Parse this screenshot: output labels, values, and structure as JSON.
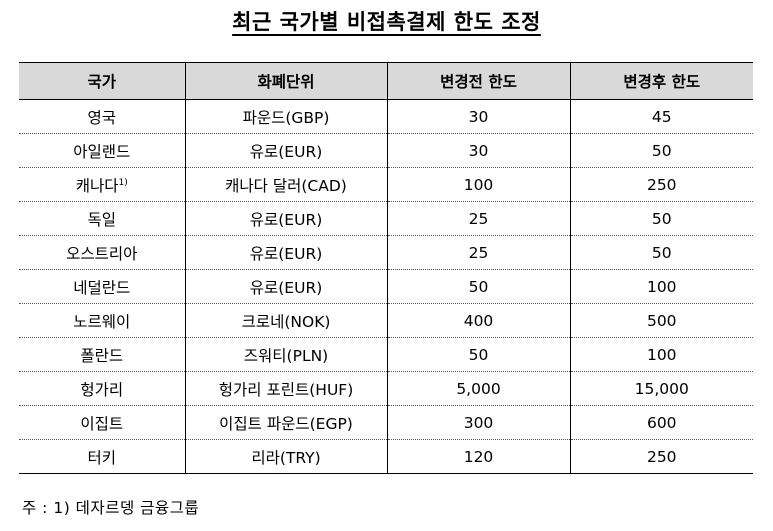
{
  "title": "최근 국가별 비접촉결제 한도 조정",
  "table": {
    "headers": [
      "국가",
      "화폐단위",
      "변경전 한도",
      "변경후 한도"
    ],
    "rows": [
      {
        "country": "영국",
        "currency": "파운드(GBP)",
        "before": "30",
        "after": "45"
      },
      {
        "country": "아일랜드",
        "currency": "유로(EUR)",
        "before": "30",
        "after": "50"
      },
      {
        "country": "캐나다",
        "note": "1)",
        "currency": "캐나다 달러(CAD)",
        "before": "100",
        "after": "250"
      },
      {
        "country": "독일",
        "currency": "유로(EUR)",
        "before": "25",
        "after": "50"
      },
      {
        "country": "오스트리아",
        "currency": "유로(EUR)",
        "before": "25",
        "after": "50"
      },
      {
        "country": "네덜란드",
        "currency": "유로(EUR)",
        "before": "50",
        "after": "100"
      },
      {
        "country": "노르웨이",
        "currency": "크로네(NOK)",
        "before": "400",
        "after": "500"
      },
      {
        "country": "폴란드",
        "currency": "즈워티(PLN)",
        "before": "50",
        "after": "100"
      },
      {
        "country": "헝가리",
        "currency": "헝가리 포린트(HUF)",
        "before": "5,000",
        "after": "15,000"
      },
      {
        "country": "이집트",
        "currency": "이집트 파운드(EGP)",
        "before": "300",
        "after": "600"
      },
      {
        "country": "터키",
        "currency": "리라(TRY)",
        "before": "120",
        "after": "250"
      }
    ]
  },
  "footnote": "주 : 1) 데자르뎅 금융그룹"
}
